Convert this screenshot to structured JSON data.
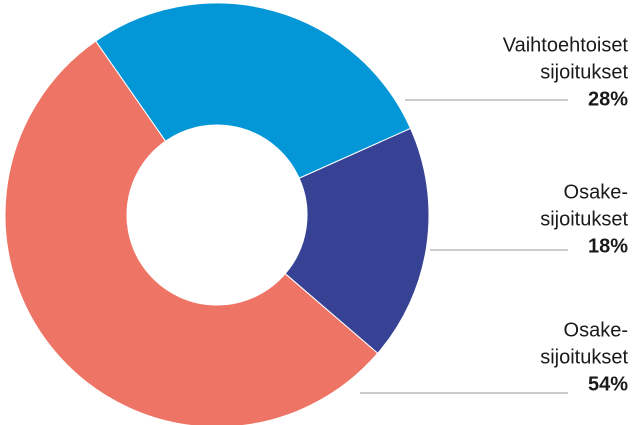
{
  "chart_data": {
    "type": "donut",
    "categories": [
      [
        "Vaihtoehtoiset",
        "sijoitukset"
      ],
      [
        "Osake-",
        "sijoitukset"
      ],
      [
        "Osake-",
        "sijoitukset"
      ]
    ],
    "values": [
      28,
      18,
      54
    ],
    "value_labels": [
      "28%",
      "18%",
      "54%"
    ],
    "colors": [
      "#0497d8",
      "#374294",
      "#ee7566"
    ]
  }
}
